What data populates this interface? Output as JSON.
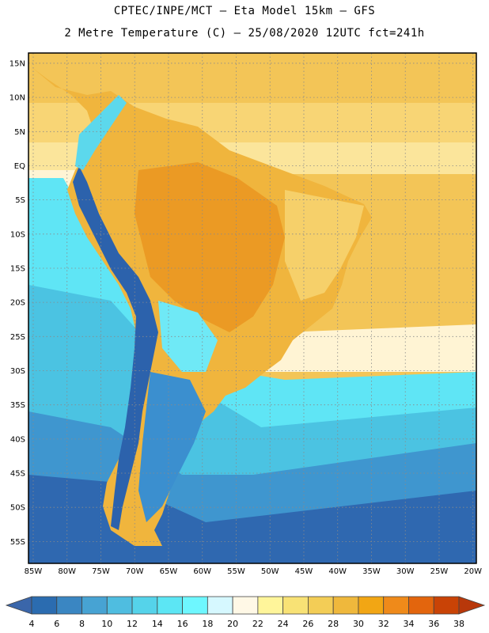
{
  "header": {
    "line1": "CPTEC/INPE/MCT –  Eta Model 15km – GFS",
    "line2": "2 Metre Temperature (C) – 25/08/2020 12UTC fct=241h"
  },
  "map": {
    "lat_labels": [
      {
        "lat": 15,
        "label": "15N"
      },
      {
        "lat": 10,
        "label": "10N"
      },
      {
        "lat": 5,
        "label": "5N"
      },
      {
        "lat": 0,
        "label": "EQ"
      },
      {
        "lat": -5,
        "label": "5S"
      },
      {
        "lat": -10,
        "label": "10S"
      },
      {
        "lat": -15,
        "label": "15S"
      },
      {
        "lat": -20,
        "label": "20S"
      },
      {
        "lat": -25,
        "label": "25S"
      },
      {
        "lat": -30,
        "label": "30S"
      },
      {
        "lat": -35,
        "label": "35S"
      },
      {
        "lat": -40,
        "label": "40S"
      },
      {
        "lat": -45,
        "label": "45S"
      },
      {
        "lat": -50,
        "label": "50S"
      },
      {
        "lat": -55,
        "label": "55S"
      }
    ],
    "lon_labels": [
      {
        "lon": -85,
        "label": "85W"
      },
      {
        "lon": -80,
        "label": "80W"
      },
      {
        "lon": -75,
        "label": "75W"
      },
      {
        "lon": -70,
        "label": "70W"
      },
      {
        "lon": -65,
        "label": "65W"
      },
      {
        "lon": -60,
        "label": "60W"
      },
      {
        "lon": -55,
        "label": "55W"
      },
      {
        "lon": -50,
        "label": "50W"
      },
      {
        "lon": -45,
        "label": "45W"
      },
      {
        "lon": -40,
        "label": "40W"
      },
      {
        "lon": -35,
        "label": "35W"
      },
      {
        "lon": -30,
        "label": "30W"
      },
      {
        "lon": -25,
        "label": "25W"
      },
      {
        "lon": -20,
        "label": "20W"
      }
    ],
    "extent": {
      "lon_min": -85.7,
      "lon_max": -19.5,
      "lat_min": -58.2,
      "lat_max": 16.5
    },
    "grid_lines": true
  },
  "colorbar": {
    "ticks": [
      "4",
      "6",
      "8",
      "10",
      "12",
      "14",
      "16",
      "18",
      "20",
      "22",
      "24",
      "26",
      "28",
      "30",
      "32",
      "34",
      "36",
      "38"
    ],
    "colors": [
      "#2b6cb0",
      "#3a86c2",
      "#47a3d3",
      "#4fbde0",
      "#55d3ea",
      "#5ce6f4",
      "#6ef7ff",
      "#d6f8ff",
      "#fff8e6",
      "#fff59a",
      "#f8e275",
      "#f3cd56",
      "#efb83c",
      "#f2a614",
      "#ef8a1a",
      "#e3650d",
      "#c94306"
    ]
  },
  "colors": {
    "ocean_cold": "#2e5fa8",
    "ocean_mid": "#3d8fcf",
    "ocean_cool": "#4fd0e8",
    "ocean_light": "#63f0fb",
    "pale": "#fff7e2",
    "warm_sea": "#f8d575",
    "land_warm": "#f3c55a",
    "land_hot": "#eeac32",
    "land_hottest": "#e8951c",
    "andes": "#2f68b2"
  }
}
